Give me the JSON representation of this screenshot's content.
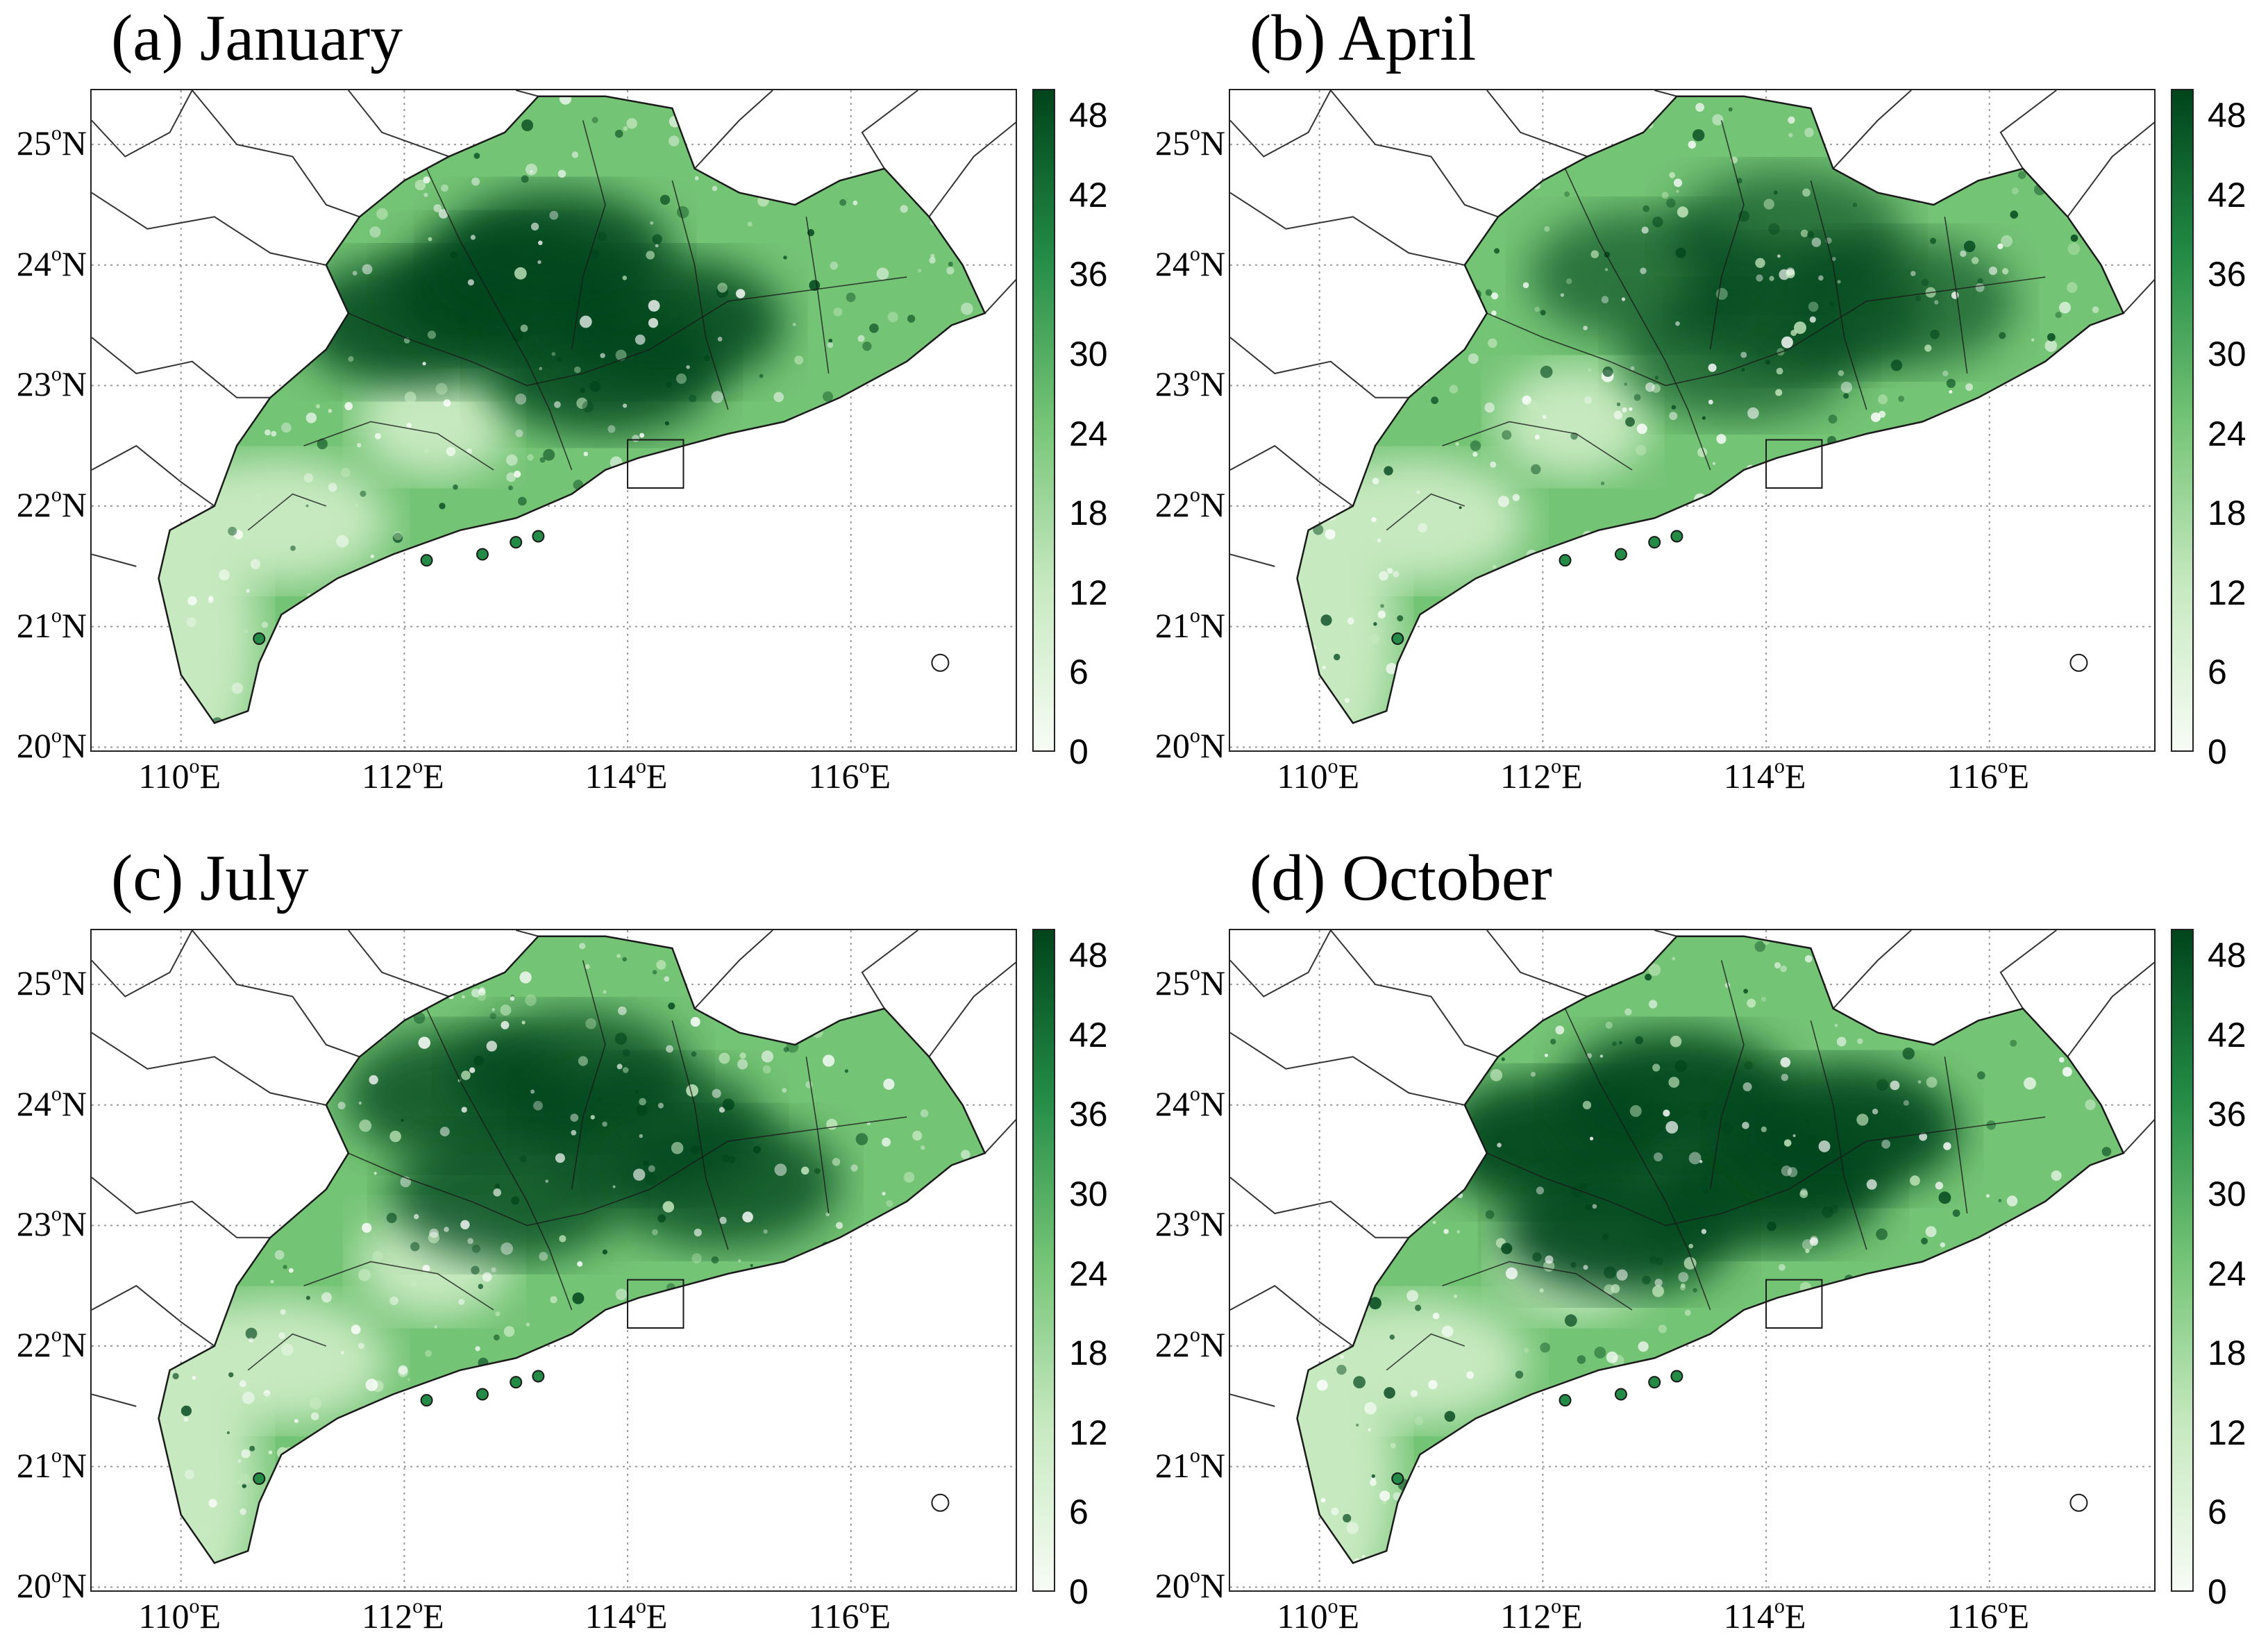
{
  "panels": [
    {
      "title": "(a) January",
      "month": "January",
      "intensity": 0.85,
      "hotspots": [
        [
          0.35,
          0.35
        ],
        [
          0.45,
          0.3
        ],
        [
          0.55,
          0.42
        ],
        [
          0.62,
          0.35
        ],
        [
          0.5,
          0.25
        ]
      ]
    },
    {
      "title": "(b) April",
      "month": "April",
      "intensity": 0.62,
      "hotspots": [
        [
          0.55,
          0.4
        ],
        [
          0.62,
          0.33
        ],
        [
          0.45,
          0.28
        ],
        [
          0.72,
          0.32
        ],
        [
          0.6,
          0.22
        ]
      ]
    },
    {
      "title": "(c) July",
      "month": "July",
      "intensity": 0.78,
      "hotspots": [
        [
          0.4,
          0.25
        ],
        [
          0.52,
          0.22
        ],
        [
          0.6,
          0.3
        ],
        [
          0.45,
          0.4
        ],
        [
          0.68,
          0.38
        ]
      ]
    },
    {
      "title": "(d) October",
      "month": "October",
      "intensity": 0.92,
      "hotspots": [
        [
          0.35,
          0.32
        ],
        [
          0.48,
          0.25
        ],
        [
          0.58,
          0.38
        ],
        [
          0.66,
          0.3
        ],
        [
          0.42,
          0.45
        ]
      ]
    }
  ],
  "axes": {
    "latitude": [
      {
        "deg": "25",
        "hem": "N"
      },
      {
        "deg": "24",
        "hem": "N"
      },
      {
        "deg": "23",
        "hem": "N"
      },
      {
        "deg": "22",
        "hem": "N"
      },
      {
        "deg": "21",
        "hem": "N"
      },
      {
        "deg": "20",
        "hem": "N"
      }
    ],
    "longitude": [
      {
        "deg": "110",
        "hem": "E"
      },
      {
        "deg": "112",
        "hem": "E"
      },
      {
        "deg": "114",
        "hem": "E"
      },
      {
        "deg": "116",
        "hem": "E"
      }
    ],
    "degree_symbol": "o",
    "lat_range": [
      19.95,
      25.45
    ],
    "lon_range": [
      109.2,
      117.5
    ]
  },
  "colorbar": {
    "ticks": [
      "48",
      "42",
      "36",
      "30",
      "24",
      "18",
      "12",
      "6",
      "0"
    ],
    "tick_values": [
      48,
      42,
      36,
      30,
      24,
      18,
      12,
      6,
      0
    ],
    "range": [
      0,
      50
    ],
    "colors": [
      "#f7fcf5",
      "#c7e9c0",
      "#74c476",
      "#238b45",
      "#00441b"
    ]
  }
}
